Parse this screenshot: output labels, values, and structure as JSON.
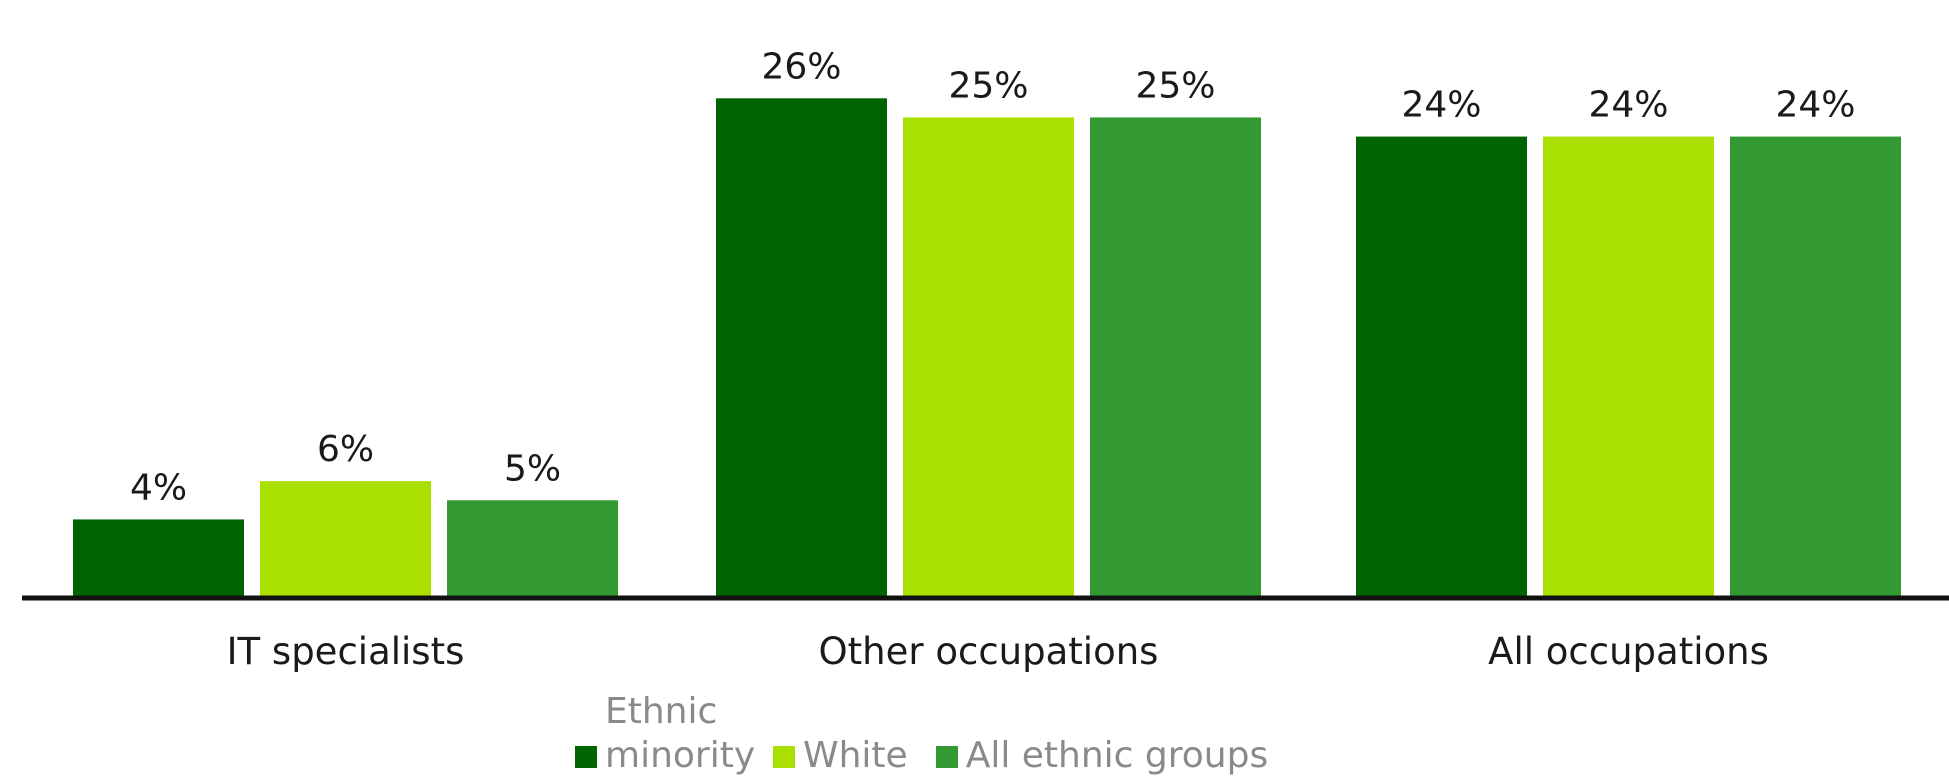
{
  "chart_data": {
    "type": "bar",
    "categories": [
      "IT specialists",
      "Other occupations",
      "All occupations"
    ],
    "series": [
      {
        "name": "Ethnic minority",
        "color": "#006400",
        "values": [
          4,
          26,
          24
        ],
        "labels": [
          "4%",
          "26%",
          "24%"
        ]
      },
      {
        "name": "White",
        "color": "#aae000",
        "values": [
          6,
          25,
          24
        ],
        "labels": [
          "6%",
          "25%",
          "24%"
        ]
      },
      {
        "name": "All ethnic groups",
        "color": "#339933",
        "values": [
          5,
          25,
          24
        ],
        "labels": [
          "5%",
          "25%",
          "24%"
        ]
      }
    ],
    "ylim": [
      0,
      28
    ],
    "grid": false,
    "legend_position": "bottom"
  }
}
